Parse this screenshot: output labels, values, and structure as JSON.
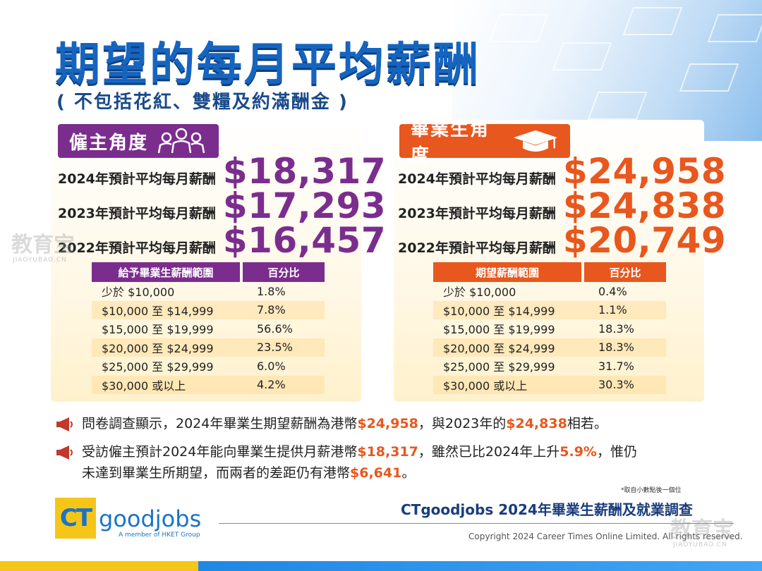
{
  "header": {
    "title": "期望的每月平均薪酬",
    "subtitle": "( 不包括花紅、雙糧及約滿酬金 )"
  },
  "employer": {
    "tag_label": "僱主角度",
    "tag_icon": "people-group-icon",
    "salaries": [
      {
        "label": "2024年預計平均每月薪酬",
        "value": "$18,317"
      },
      {
        "label": "2023年預計平均每月薪酬",
        "value": "$17,293"
      },
      {
        "label": "2022年預計平均每月薪酬",
        "value": "$16,457"
      }
    ],
    "table": {
      "headers": [
        "給予畢業生薪酬範圍",
        "百分比"
      ],
      "rows": [
        [
          "少於 $10,000",
          "1.8%"
        ],
        [
          "$10,000 至 $14,999",
          "7.8%"
        ],
        [
          "$15,000 至 $19,999",
          "56.6%"
        ],
        [
          "$20,000 至 $24,999",
          "23.5%"
        ],
        [
          "$25,000 至 $29,999",
          "6.0%"
        ],
        [
          "$30,000 或以上",
          "4.2%"
        ]
      ]
    }
  },
  "graduate": {
    "tag_label": "畢業生角度",
    "tag_icon": "graduation-cap-icon",
    "salaries": [
      {
        "label": "2024年預計平均每月薪酬",
        "value": "$24,958"
      },
      {
        "label": "2023年預計平均每月薪酬",
        "value": "$24,838"
      },
      {
        "label": "2022年預計平均每月薪酬",
        "value": "$20,749"
      }
    ],
    "table": {
      "headers": [
        "期望薪酬範圍",
        "百分比"
      ],
      "rows": [
        [
          "少於 $10,000",
          "0.4%"
        ],
        [
          "$10,000 至 $14,999",
          "1.1%"
        ],
        [
          "$15,000 至 $19,999",
          "18.3%"
        ],
        [
          "$20,000 至 $24,999",
          "18.3%"
        ],
        [
          "$25,000 至 $29,999",
          "31.7%"
        ],
        [
          "$30,000 或以上",
          "30.3%"
        ]
      ]
    }
  },
  "notes": {
    "icon": "megaphone-icon",
    "note1": {
      "p1": "問卷調查顯示，2024年畢業生期望薪酬為港幣",
      "h1": "$24,958",
      "p2": "，與2023年的",
      "h2": "$24,838",
      "p3": "相若。"
    },
    "note2": {
      "p1": "受訪僱主預計2024年能向畢業生提供月薪港幣",
      "h1": "$18,317",
      "p2": "，雖然已比2024年上升",
      "h2": "5.9%",
      "p3": "，惟仍",
      "p4": "未達到畢業生所期望，而兩者的差距仍有港幣",
      "h3": "$6,641",
      "p5": "。"
    }
  },
  "footer": {
    "footnote": "*取自小數點後一個位",
    "survey_title": "CTgoodjobs 2024年畢業生薪酬及就業調查",
    "copyright": "Copyright 2024 Career Times Online Limited. All rights reserved.",
    "logo_ct": "CT",
    "logo_name": "goodjobs",
    "logo_sub": "A member of HKET Group"
  },
  "watermark": {
    "text": "教育宝",
    "sub": "JIAOYUBAO.CN"
  },
  "colors": {
    "employer": "#7b2d8e",
    "graduate": "#e8571e",
    "title": "#1565c0"
  }
}
